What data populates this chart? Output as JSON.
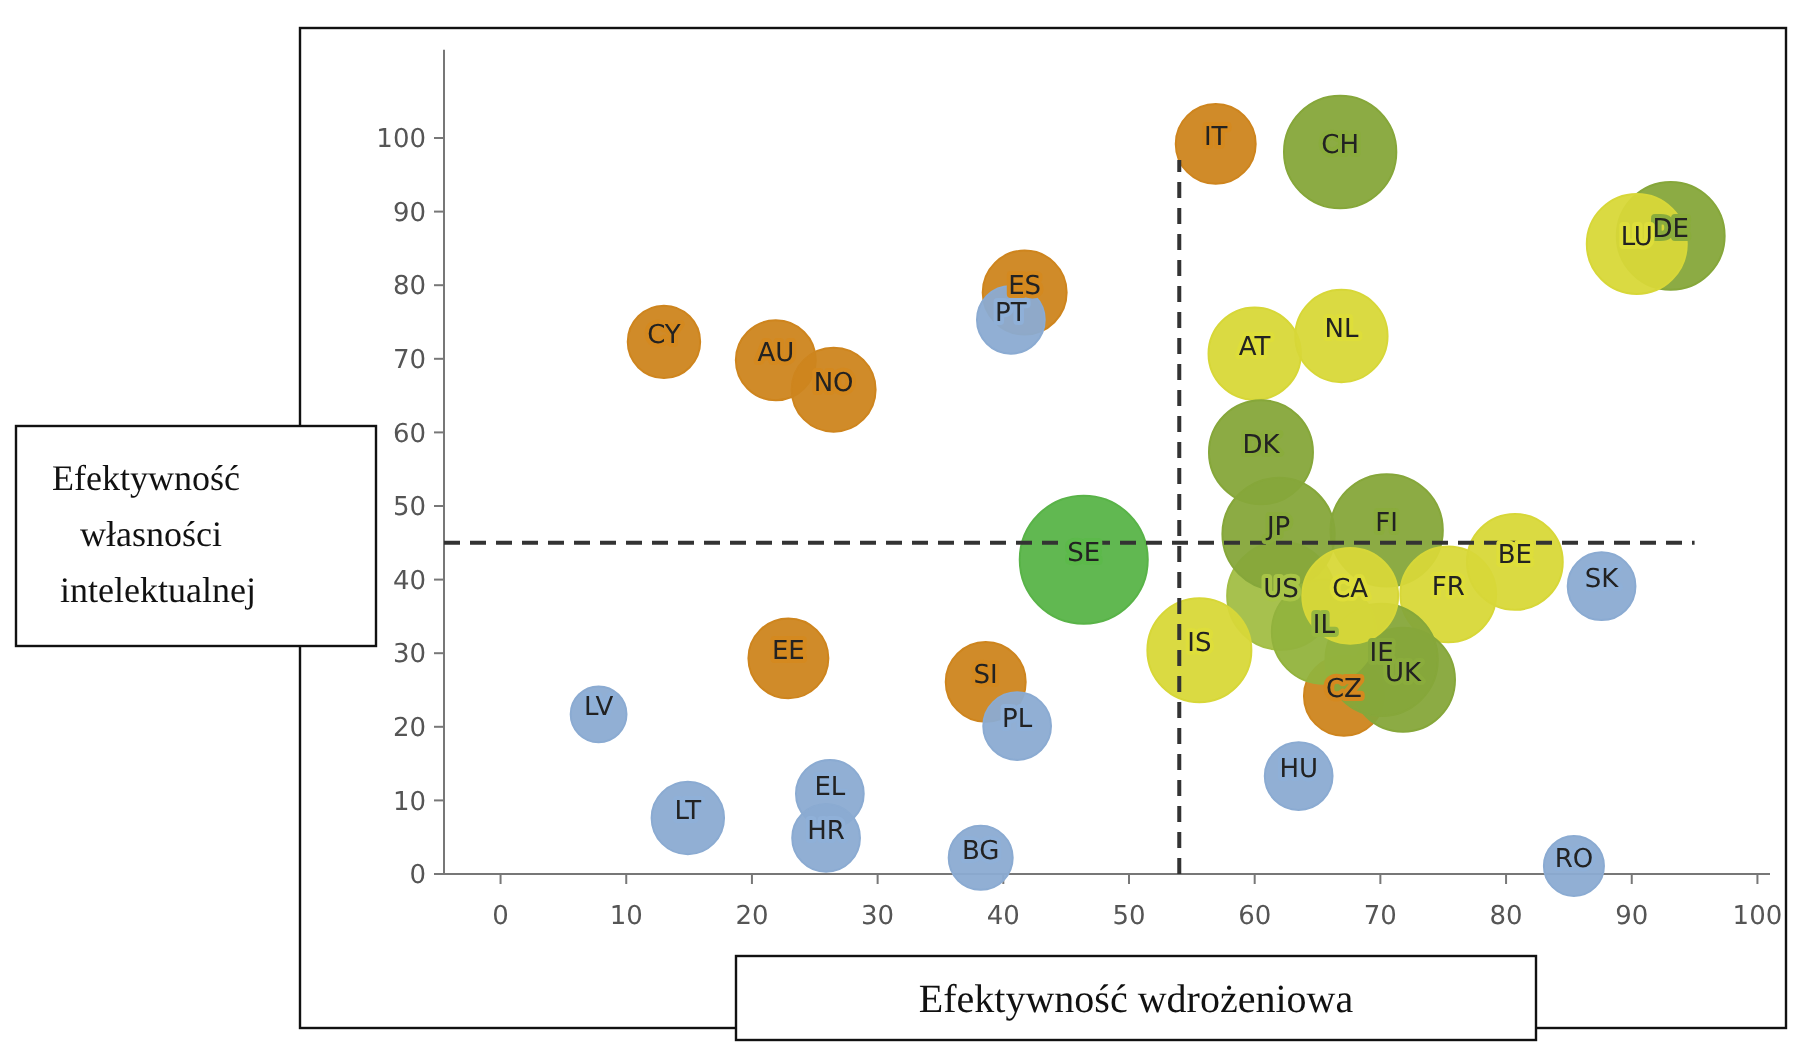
{
  "chart_data": {
    "type": "bubble",
    "xlabel": "Efektywność wdrożeniowa",
    "ylabel": "Efektywność własności intelektualnej",
    "xlim": [
      -4.5,
      101
    ],
    "ylim": [
      0,
      112
    ],
    "xticks": [
      0,
      10,
      20,
      30,
      40,
      50,
      60,
      70,
      80,
      90,
      100
    ],
    "yticks": [
      0,
      10,
      20,
      30,
      40,
      50,
      60,
      70,
      80,
      90,
      100
    ],
    "grid": false,
    "ref_lines": [
      {
        "axis": "y",
        "value": 45,
        "line_style": "dashed",
        "color": "#333333"
      },
      {
        "axis": "x",
        "value": 54,
        "line_style": "dashed",
        "color": "#333333"
      }
    ],
    "series": [
      {
        "name": "SE",
        "color": "#5cb94a",
        "x": [
          46.4
        ],
        "values": [
          42.7
        ],
        "sizes": [
          1
        ]
      },
      {
        "name": "CY",
        "color": "#d4891f",
        "x": [
          13.0
        ],
        "values": [
          72.3
        ],
        "sizes": [
          0.32
        ]
      },
      {
        "name": "AU",
        "color": "#d4891f",
        "x": [
          21.9
        ],
        "values": [
          69.8
        ],
        "sizes": [
          0.39
        ]
      },
      {
        "name": "NO",
        "color": "#d4891f",
        "x": [
          26.5
        ],
        "values": [
          65.8
        ],
        "sizes": [
          0.43
        ]
      },
      {
        "name": "ES",
        "color": "#d4891f",
        "x": [
          41.7
        ],
        "values": [
          79
        ],
        "sizes": [
          0.43
        ]
      },
      {
        "name": "PT",
        "color": "#8fb0d8",
        "x": [
          40.6
        ],
        "values": [
          75.3
        ],
        "sizes": [
          0.28
        ]
      },
      {
        "name": "IT",
        "color": "#d4891f",
        "x": [
          56.9
        ],
        "values": [
          99.2
        ],
        "sizes": [
          0.39
        ]
      },
      {
        "name": "CH",
        "color": "#8aac3c",
        "x": [
          66.8
        ],
        "values": [
          98.1
        ],
        "sizes": [
          0.77
        ]
      },
      {
        "name": "DE",
        "color": "#8aac3c",
        "x": [
          93.1
        ],
        "values": [
          86.7
        ],
        "sizes": [
          0.71
        ]
      },
      {
        "name": "LU",
        "color": "#dede3a",
        "x": [
          90.4
        ],
        "values": [
          85.6
        ],
        "sizes": [
          0.61
        ]
      },
      {
        "name": "AT",
        "color": "#dede3a",
        "x": [
          60.0
        ],
        "values": [
          70.7
        ],
        "sizes": [
          0.52
        ]
      },
      {
        "name": "NL",
        "color": "#dede3a",
        "x": [
          66.9
        ],
        "values": [
          73.1
        ],
        "sizes": [
          0.52
        ]
      },
      {
        "name": "DK",
        "color": "#8aac3c",
        "x": [
          60.5
        ],
        "values": [
          57.3
        ],
        "sizes": [
          0.66
        ]
      },
      {
        "name": "US",
        "color": "#a8c447",
        "x": [
          62.1
        ],
        "values": [
          37.8
        ],
        "sizes": [
          0.71
        ]
      },
      {
        "name": "JP",
        "color": "#8aac3c",
        "x": [
          61.9
        ],
        "values": [
          46.2
        ],
        "sizes": [
          0.77
        ]
      },
      {
        "name": "FI",
        "color": "#8aac3c",
        "x": [
          70.5
        ],
        "values": [
          46.7
        ],
        "sizes": [
          0.77
        ]
      },
      {
        "name": "FR",
        "color": "#dede3a",
        "x": [
          75.4
        ],
        "values": [
          38.0
        ],
        "sizes": [
          0.56
        ]
      },
      {
        "name": "BE",
        "color": "#dede3a",
        "x": [
          80.7
        ],
        "values": [
          42.4
        ],
        "sizes": [
          0.56
        ]
      },
      {
        "name": "SK",
        "color": "#8fb0d8",
        "x": [
          87.6
        ],
        "values": [
          39.1
        ],
        "sizes": [
          0.28
        ]
      },
      {
        "name": "CZ",
        "color": "#d4891f",
        "x": [
          67.1
        ],
        "values": [
          24.2
        ],
        "sizes": [
          0.39
        ]
      },
      {
        "name": "UK",
        "color": "#8aac3c",
        "x": [
          71.8
        ],
        "values": [
          26.4
        ],
        "sizes": [
          0.66
        ]
      },
      {
        "name": "IE",
        "color": "#8aac3c",
        "x": [
          70.1
        ],
        "values": [
          29.1
        ],
        "sizes": [
          0.77
        ]
      },
      {
        "name": "IL",
        "color": "#97b83f",
        "x": [
          65.5
        ],
        "values": [
          32.9
        ],
        "sizes": [
          0.66
        ]
      },
      {
        "name": "CA",
        "color": "#dede3a",
        "x": [
          67.6
        ],
        "values": [
          37.8
        ],
        "sizes": [
          0.56
        ]
      },
      {
        "name": "IS",
        "color": "#dede3a",
        "x": [
          55.6
        ],
        "values": [
          30.4
        ],
        "sizes": [
          0.66
        ]
      },
      {
        "name": "HU",
        "color": "#8fb0d8",
        "x": [
          63.5
        ],
        "values": [
          13.3
        ],
        "sizes": [
          0.28
        ]
      },
      {
        "name": "RO",
        "color": "#8fb0d8",
        "x": [
          85.4
        ],
        "values": [
          1.1
        ],
        "sizes": [
          0.22
        ]
      },
      {
        "name": "LV",
        "color": "#8fb0d8",
        "x": [
          7.8
        ],
        "values": [
          21.7
        ],
        "sizes": [
          0.19
        ]
      },
      {
        "name": "EE",
        "color": "#d4891f",
        "x": [
          22.9
        ],
        "values": [
          29.3
        ],
        "sizes": [
          0.39
        ]
      },
      {
        "name": "SI",
        "color": "#d4891f",
        "x": [
          38.6
        ],
        "values": [
          26.1
        ],
        "sizes": [
          0.39
        ]
      },
      {
        "name": "PL",
        "color": "#8fb0d8",
        "x": [
          41.1
        ],
        "values": [
          20.1
        ],
        "sizes": [
          0.28
        ]
      },
      {
        "name": "LT",
        "color": "#8fb0d8",
        "x": [
          14.9
        ],
        "values": [
          7.6
        ],
        "sizes": [
          0.32
        ]
      },
      {
        "name": "EL",
        "color": "#8fb0d8",
        "x": [
          26.2
        ],
        "values": [
          10.9
        ],
        "sizes": [
          0.28
        ]
      },
      {
        "name": "HR",
        "color": "#8fb0d8",
        "x": [
          25.9
        ],
        "values": [
          4.9
        ],
        "sizes": [
          0.28
        ]
      },
      {
        "name": "BG",
        "color": "#8fb0d8",
        "x": [
          38.2
        ],
        "values": [
          2.2
        ],
        "sizes": [
          0.25
        ]
      }
    ]
  }
}
